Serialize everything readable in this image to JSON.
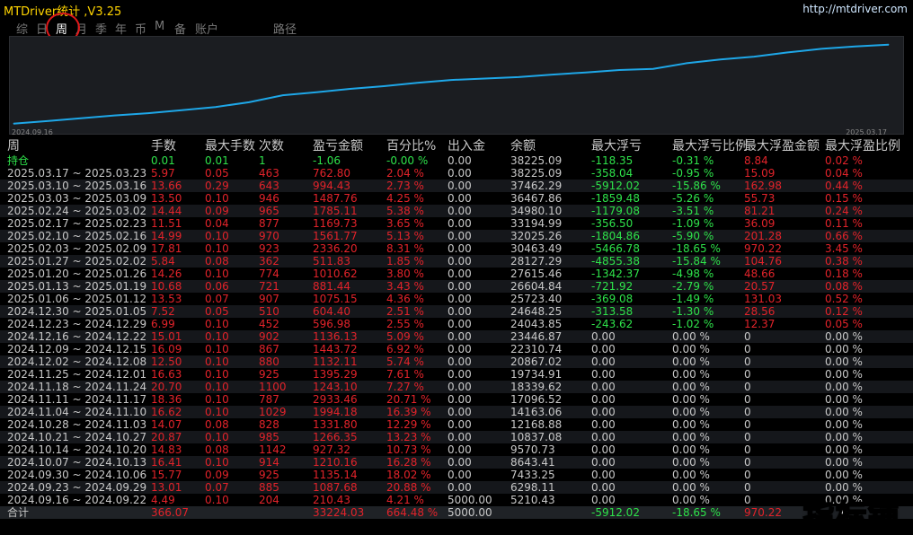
{
  "app": {
    "title": "MTDriver统计 ,V3.25",
    "url": "http://mtdriver.com"
  },
  "tabs": [
    {
      "label": "综",
      "active": false
    },
    {
      "label": "日",
      "active": false
    },
    {
      "label": "周",
      "active": true
    },
    {
      "label": "月",
      "active": false
    },
    {
      "label": "季",
      "active": false
    },
    {
      "label": "年",
      "active": false
    },
    {
      "label": "币",
      "active": false
    },
    {
      "label": "M",
      "active": false
    },
    {
      "label": "备",
      "active": false
    },
    {
      "label": "账户",
      "active": false
    },
    {
      "label": "路径",
      "active": false
    }
  ],
  "chart_data": {
    "type": "line",
    "x_start_label": "2024.09.16",
    "x_end_label": "2025.03.17",
    "line_color": "#1ea7e8",
    "x": [
      "2024.09.16",
      "2024.09.23",
      "2024.09.30",
      "2024.10.07",
      "2024.10.14",
      "2024.10.21",
      "2024.10.28",
      "2024.11.04",
      "2024.11.11",
      "2024.11.18",
      "2024.11.25",
      "2024.12.02",
      "2024.12.09",
      "2024.12.16",
      "2024.12.23",
      "2024.12.30",
      "2025.01.06",
      "2025.01.13",
      "2025.01.20",
      "2025.01.27",
      "2025.02.03",
      "2025.02.10",
      "2025.02.17",
      "2025.02.24",
      "2025.03.03",
      "2025.03.10",
      "2025.03.17"
    ],
    "y": [
      5210.43,
      6298.11,
      7433.25,
      8643.41,
      9570.73,
      10837.08,
      12168.88,
      14163.06,
      17096.52,
      18339.62,
      19734.91,
      20867.02,
      22310.74,
      23446.87,
      24043.85,
      24648.25,
      25723.4,
      26604.84,
      27615.46,
      28127.29,
      30463.49,
      32025.26,
      33194.99,
      34980.1,
      36467.86,
      37462.29,
      38225.09
    ],
    "ylim": [
      4000,
      40000
    ]
  },
  "table": {
    "headers": [
      "周",
      "手数",
      "最大手数",
      "次数",
      "盈亏金额",
      "百分比%",
      "出入金",
      "余额",
      "最大浮亏",
      "最大浮亏比例",
      "最大浮盈金额",
      "最大浮盈比例"
    ],
    "holding_row": {
      "period": "持仓",
      "lots": "0.01",
      "max_lots": "0.01",
      "count": "1",
      "pnl": "-1.06",
      "pct": "-0.00 %",
      "flow": "0.00",
      "balance": "38225.09",
      "max_float_loss": "-118.35",
      "max_float_loss_pct": "-0.31 %",
      "max_float_profit": "8.84",
      "max_float_profit_pct": "0.02 %"
    },
    "rows": [
      {
        "period": "2025.03.17 ~ 2025.03.23",
        "lots": "5.97",
        "max_lots": "0.05",
        "count": "463",
        "pnl": "762.80",
        "pct": "2.04 %",
        "flow": "0.00",
        "balance": "38225.09",
        "max_float_loss": "-358.04",
        "max_float_loss_pct": "-0.95 %",
        "max_float_profit": "15.09",
        "max_float_profit_pct": "0.04 %"
      },
      {
        "period": "2025.03.10 ~ 2025.03.16",
        "lots": "13.66",
        "max_lots": "0.29",
        "count": "643",
        "pnl": "994.43",
        "pct": "2.73 %",
        "flow": "0.00",
        "balance": "37462.29",
        "max_float_loss": "-5912.02",
        "max_float_loss_pct": "-15.86 %",
        "max_float_profit": "162.98",
        "max_float_profit_pct": "0.44 %"
      },
      {
        "period": "2025.03.03 ~ 2025.03.09",
        "lots": "13.50",
        "max_lots": "0.10",
        "count": "946",
        "pnl": "1487.76",
        "pct": "4.25 %",
        "flow": "0.00",
        "balance": "36467.86",
        "max_float_loss": "-1859.48",
        "max_float_loss_pct": "-5.26 %",
        "max_float_profit": "55.73",
        "max_float_profit_pct": "0.15 %"
      },
      {
        "period": "2025.02.24 ~ 2025.03.02",
        "lots": "14.44",
        "max_lots": "0.09",
        "count": "965",
        "pnl": "1785.11",
        "pct": "5.38 %",
        "flow": "0.00",
        "balance": "34980.10",
        "max_float_loss": "-1179.08",
        "max_float_loss_pct": "-3.51 %",
        "max_float_profit": "81.21",
        "max_float_profit_pct": "0.24 %"
      },
      {
        "period": "2025.02.17 ~ 2025.02.23",
        "lots": "11.51",
        "max_lots": "0.04",
        "count": "877",
        "pnl": "1169.73",
        "pct": "3.65 %",
        "flow": "0.00",
        "balance": "33194.99",
        "max_float_loss": "-356.50",
        "max_float_loss_pct": "-1.09 %",
        "max_float_profit": "36.09",
        "max_float_profit_pct": "0.11 %"
      },
      {
        "period": "2025.02.10 ~ 2025.02.16",
        "lots": "14.99",
        "max_lots": "0.10",
        "count": "970",
        "pnl": "1561.77",
        "pct": "5.13 %",
        "flow": "0.00",
        "balance": "32025.26",
        "max_float_loss": "-1804.86",
        "max_float_loss_pct": "-5.90 %",
        "max_float_profit": "201.28",
        "max_float_profit_pct": "0.66 %"
      },
      {
        "period": "2025.02.03 ~ 2025.02.09",
        "lots": "17.81",
        "max_lots": "0.10",
        "count": "923",
        "pnl": "2336.20",
        "pct": "8.31 %",
        "flow": "0.00",
        "balance": "30463.49",
        "max_float_loss": "-5466.78",
        "max_float_loss_pct": "-18.65 %",
        "max_float_profit": "970.22",
        "max_float_profit_pct": "3.45 %"
      },
      {
        "period": "2025.01.27 ~ 2025.02.02",
        "lots": "5.84",
        "max_lots": "0.08",
        "count": "362",
        "pnl": "511.83",
        "pct": "1.85 %",
        "flow": "0.00",
        "balance": "28127.29",
        "max_float_loss": "-4855.38",
        "max_float_loss_pct": "-15.84 %",
        "max_float_profit": "104.76",
        "max_float_profit_pct": "0.38 %"
      },
      {
        "period": "2025.01.20 ~ 2025.01.26",
        "lots": "14.26",
        "max_lots": "0.10",
        "count": "774",
        "pnl": "1010.62",
        "pct": "3.80 %",
        "flow": "0.00",
        "balance": "27615.46",
        "max_float_loss": "-1342.37",
        "max_float_loss_pct": "-4.98 %",
        "max_float_profit": "48.66",
        "max_float_profit_pct": "0.18 %"
      },
      {
        "period": "2025.01.13 ~ 2025.01.19",
        "lots": "10.68",
        "max_lots": "0.06",
        "count": "721",
        "pnl": "881.44",
        "pct": "3.43 %",
        "flow": "0.00",
        "balance": "26604.84",
        "max_float_loss": "-721.92",
        "max_float_loss_pct": "-2.79 %",
        "max_float_profit": "20.57",
        "max_float_profit_pct": "0.08 %"
      },
      {
        "period": "2025.01.06 ~ 2025.01.12",
        "lots": "13.53",
        "max_lots": "0.07",
        "count": "907",
        "pnl": "1075.15",
        "pct": "4.36 %",
        "flow": "0.00",
        "balance": "25723.40",
        "max_float_loss": "-369.08",
        "max_float_loss_pct": "-1.49 %",
        "max_float_profit": "131.03",
        "max_float_profit_pct": "0.52 %"
      },
      {
        "period": "2024.12.30 ~ 2025.01.05",
        "lots": "7.52",
        "max_lots": "0.05",
        "count": "510",
        "pnl": "604.40",
        "pct": "2.51 %",
        "flow": "0.00",
        "balance": "24648.25",
        "max_float_loss": "-313.58",
        "max_float_loss_pct": "-1.30 %",
        "max_float_profit": "28.56",
        "max_float_profit_pct": "0.12 %"
      },
      {
        "period": "2024.12.23 ~ 2024.12.29",
        "lots": "6.99",
        "max_lots": "0.10",
        "count": "452",
        "pnl": "596.98",
        "pct": "2.55 %",
        "flow": "0.00",
        "balance": "24043.85",
        "max_float_loss": "-243.62",
        "max_float_loss_pct": "-1.02 %",
        "max_float_profit": "12.37",
        "max_float_profit_pct": "0.05 %"
      },
      {
        "period": "2024.12.16 ~ 2024.12.22",
        "lots": "15.01",
        "max_lots": "0.10",
        "count": "902",
        "pnl": "1136.13",
        "pct": "5.09 %",
        "flow": "0.00",
        "balance": "23446.87",
        "max_float_loss": "0.00",
        "max_float_loss_pct": "0.00 %",
        "max_float_profit": "0",
        "max_float_profit_pct": "0.00 %"
      },
      {
        "period": "2024.12.09 ~ 2024.12.15",
        "lots": "16.09",
        "max_lots": "0.10",
        "count": "867",
        "pnl": "1443.72",
        "pct": "6.92 %",
        "flow": "0.00",
        "balance": "22310.74",
        "max_float_loss": "0.00",
        "max_float_loss_pct": "0.00 %",
        "max_float_profit": "0",
        "max_float_profit_pct": "0.00 %"
      },
      {
        "period": "2024.12.02 ~ 2024.12.08",
        "lots": "12.50",
        "max_lots": "0.10",
        "count": "880",
        "pnl": "1132.11",
        "pct": "5.74 %",
        "flow": "0.00",
        "balance": "20867.02",
        "max_float_loss": "0.00",
        "max_float_loss_pct": "0.00 %",
        "max_float_profit": "0",
        "max_float_profit_pct": "0.00 %"
      },
      {
        "period": "2024.11.25 ~ 2024.12.01",
        "lots": "16.63",
        "max_lots": "0.10",
        "count": "925",
        "pnl": "1395.29",
        "pct": "7.61 %",
        "flow": "0.00",
        "balance": "19734.91",
        "max_float_loss": "0.00",
        "max_float_loss_pct": "0.00 %",
        "max_float_profit": "0",
        "max_float_profit_pct": "0.00 %"
      },
      {
        "period": "2024.11.18 ~ 2024.11.24",
        "lots": "20.70",
        "max_lots": "0.10",
        "count": "1100",
        "pnl": "1243.10",
        "pct": "7.27 %",
        "flow": "0.00",
        "balance": "18339.62",
        "max_float_loss": "0.00",
        "max_float_loss_pct": "0.00 %",
        "max_float_profit": "0",
        "max_float_profit_pct": "0.00 %"
      },
      {
        "period": "2024.11.11 ~ 2024.11.17",
        "lots": "18.36",
        "max_lots": "0.10",
        "count": "787",
        "pnl": "2933.46",
        "pct": "20.71 %",
        "flow": "0.00",
        "balance": "17096.52",
        "max_float_loss": "0.00",
        "max_float_loss_pct": "0.00 %",
        "max_float_profit": "0",
        "max_float_profit_pct": "0.00 %"
      },
      {
        "period": "2024.11.04 ~ 2024.11.10",
        "lots": "16.62",
        "max_lots": "0.10",
        "count": "1029",
        "pnl": "1994.18",
        "pct": "16.39 %",
        "flow": "0.00",
        "balance": "14163.06",
        "max_float_loss": "0.00",
        "max_float_loss_pct": "0.00 %",
        "max_float_profit": "0",
        "max_float_profit_pct": "0.00 %"
      },
      {
        "period": "2024.10.28 ~ 2024.11.03",
        "lots": "14.07",
        "max_lots": "0.08",
        "count": "828",
        "pnl": "1331.80",
        "pct": "12.29 %",
        "flow": "0.00",
        "balance": "12168.88",
        "max_float_loss": "0.00",
        "max_float_loss_pct": "0.00 %",
        "max_float_profit": "0",
        "max_float_profit_pct": "0.00 %"
      },
      {
        "period": "2024.10.21 ~ 2024.10.27",
        "lots": "20.87",
        "max_lots": "0.10",
        "count": "985",
        "pnl": "1266.35",
        "pct": "13.23 %",
        "flow": "0.00",
        "balance": "10837.08",
        "max_float_loss": "0.00",
        "max_float_loss_pct": "0.00 %",
        "max_float_profit": "0",
        "max_float_profit_pct": "0.00 %"
      },
      {
        "period": "2024.10.14 ~ 2024.10.20",
        "lots": "14.83",
        "max_lots": "0.08",
        "count": "1142",
        "pnl": "927.32",
        "pct": "10.73 %",
        "flow": "0.00",
        "balance": "9570.73",
        "max_float_loss": "0.00",
        "max_float_loss_pct": "0.00 %",
        "max_float_profit": "0",
        "max_float_profit_pct": "0.00 %"
      },
      {
        "period": "2024.10.07 ~ 2024.10.13",
        "lots": "16.41",
        "max_lots": "0.10",
        "count": "914",
        "pnl": "1210.16",
        "pct": "16.28 %",
        "flow": "0.00",
        "balance": "8643.41",
        "max_float_loss": "0.00",
        "max_float_loss_pct": "0.00 %",
        "max_float_profit": "0",
        "max_float_profit_pct": "0.00 %"
      },
      {
        "period": "2024.09.30 ~ 2024.10.06",
        "lots": "15.77",
        "max_lots": "0.09",
        "count": "925",
        "pnl": "1135.14",
        "pct": "18.02 %",
        "flow": "0.00",
        "balance": "7433.25",
        "max_float_loss": "0.00",
        "max_float_loss_pct": "0.00 %",
        "max_float_profit": "0",
        "max_float_profit_pct": "0.00 %"
      },
      {
        "period": "2024.09.23 ~ 2024.09.29",
        "lots": "13.01",
        "max_lots": "0.07",
        "count": "885",
        "pnl": "1087.68",
        "pct": "20.88 %",
        "flow": "0.00",
        "balance": "6298.11",
        "max_float_loss": "0.00",
        "max_float_loss_pct": "0.00 %",
        "max_float_profit": "0",
        "max_float_profit_pct": "0.00 %"
      },
      {
        "period": "2024.09.16 ~ 2024.09.22",
        "lots": "4.49",
        "max_lots": "0.10",
        "count": "204",
        "pnl": "210.43",
        "pct": "4.21 %",
        "flow": "5000.00",
        "balance": "5210.43",
        "max_float_loss": "0.00",
        "max_float_loss_pct": "0.00 %",
        "max_float_profit": "0",
        "max_float_profit_pct": "0.00 %"
      }
    ],
    "total_row": {
      "period": "合计",
      "lots": "366.07",
      "max_lots": "",
      "count": "",
      "pnl": "33224.03",
      "pct": "664.48 %",
      "flow": "5000.00",
      "balance": "",
      "max_float_loss": "-5912.02",
      "max_float_loss_pct": "-18.65 %",
      "max_float_profit": "970.22",
      "max_float_profit_pct": ""
    }
  },
  "colors": {
    "positive": "#2ee24a",
    "negative": "#e2232a",
    "neutral": "#c8c8c8",
    "title": "#ffd400"
  },
  "watermark": "指标铺"
}
